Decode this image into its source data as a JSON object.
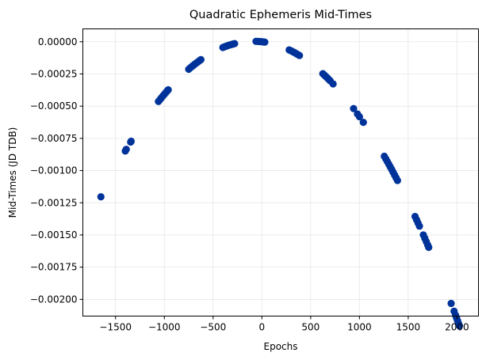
{
  "chart_data": {
    "type": "scatter",
    "title": "Quadratic Ephemeris Mid-Times",
    "xlabel": "Epochs",
    "ylabel": "Mid-Times (JD TDB)",
    "xlim": [
      -1835,
      2220
    ],
    "ylim": [
      -0.00213,
      0.0001
    ],
    "grid": true,
    "marker_color": "#003399",
    "x_ticks": [
      -1500,
      -1000,
      -500,
      0,
      500,
      1000,
      1500,
      2000
    ],
    "x_tick_labels": [
      "−1500",
      "−1000",
      "−500",
      "0",
      "500",
      "1000",
      "1500",
      "2000"
    ],
    "y_ticks": [
      0,
      -0.00025,
      -0.0005,
      -0.00075,
      -0.001,
      -0.00125,
      -0.0015,
      -0.00175,
      -0.002
    ],
    "y_tick_labels": [
      "0.00000",
      "−0.00025",
      "−0.00050",
      "−0.00075",
      "−0.00100",
      "−0.00125",
      "−0.00150",
      "−0.00175",
      "−0.00200"
    ],
    "series": [
      {
        "x": [
          -1650,
          -1400,
          -1390,
          -1345,
          -1340,
          -1060,
          -1045,
          -1030,
          -1015,
          -1000,
          -985,
          -970,
          -960,
          -750,
          -730,
          -715,
          -700,
          -685,
          -670,
          -655,
          -640,
          -625,
          -400,
          -385,
          -370,
          -355,
          -340,
          -325,
          -310,
          -295,
          -280,
          -60,
          -40,
          -20,
          0,
          15,
          30,
          280,
          295,
          310,
          325,
          340,
          355,
          370,
          385,
          625,
          640,
          655,
          670,
          685,
          700,
          730,
          940,
          980,
          1000,
          1040,
          1255,
          1270,
          1285,
          1300,
          1315,
          1330,
          1345,
          1360,
          1375,
          1390,
          1570,
          1585,
          1600,
          1615,
          1655,
          1670,
          1685,
          1700,
          1710,
          1940,
          1970,
          1985,
          1995,
          2005,
          2015,
          2025
        ]
      }
    ]
  }
}
